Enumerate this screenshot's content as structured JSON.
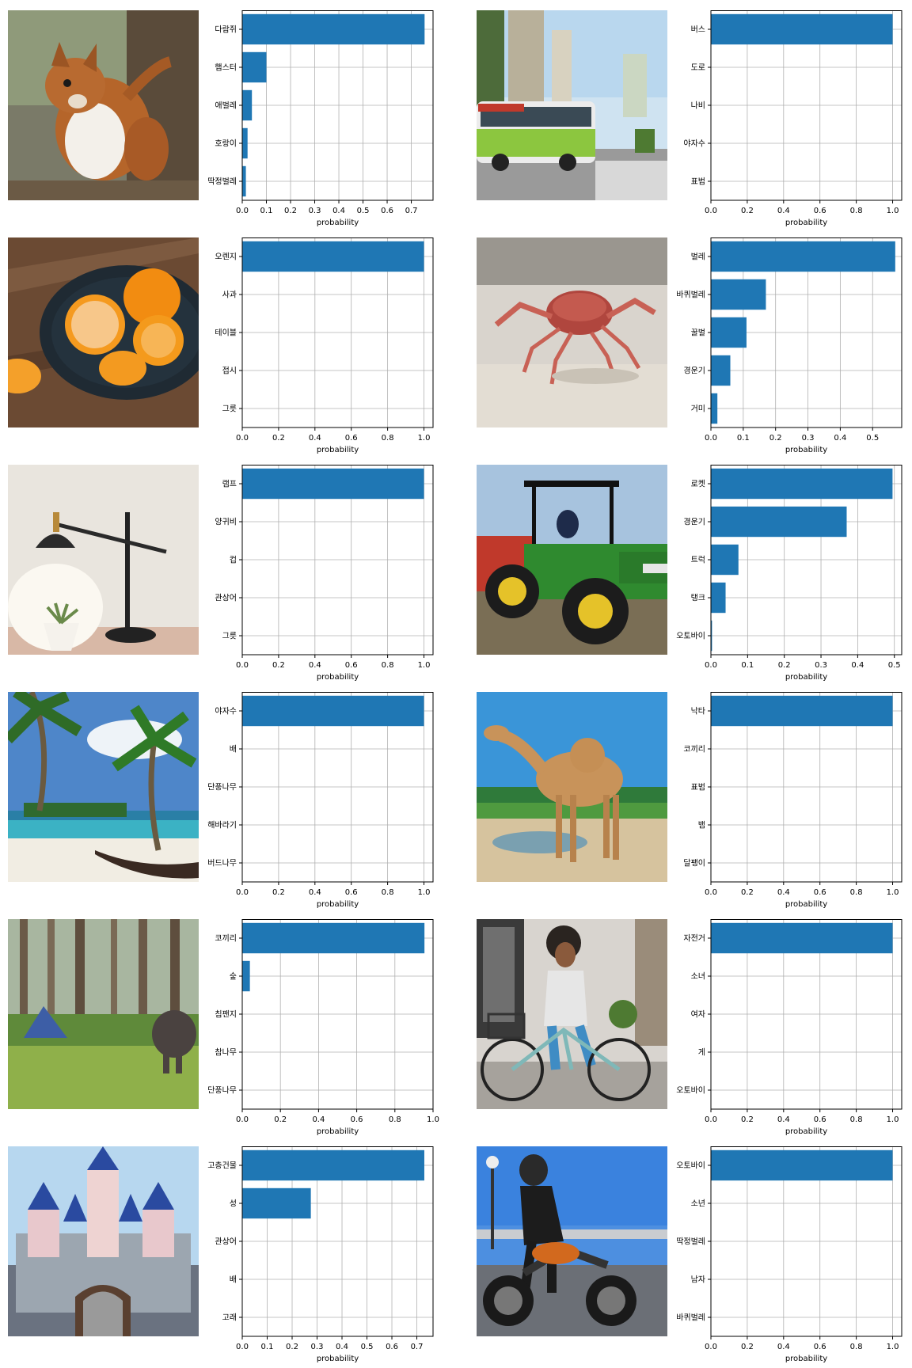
{
  "colors": {
    "bar": "#1f77b4",
    "grid": "#b0b0b0",
    "axis": "#000000"
  },
  "panels": [
    {
      "photo_subject": "squirrel",
      "chart_data": {
        "type": "bar",
        "orientation": "horizontal",
        "xlabel": "probability",
        "xlim": [
          0,
          0.79
        ],
        "xticks": [
          0,
          0.1,
          0.2,
          0.3,
          0.4,
          0.5,
          0.6,
          0.7
        ],
        "grid": true,
        "categories": [
          "다람쥐",
          "햄스터",
          "애벌레",
          "호랑이",
          "딱정벌레"
        ],
        "values": [
          0.755,
          0.1,
          0.04,
          0.022,
          0.015
        ]
      }
    },
    {
      "photo_subject": "bus",
      "chart_data": {
        "type": "bar",
        "orientation": "horizontal",
        "xlabel": "probability",
        "xlim": [
          0,
          1.05
        ],
        "xticks": [
          0,
          0.2,
          0.4,
          0.6,
          0.8,
          1.0
        ],
        "grid": true,
        "categories": [
          "버스",
          "도로",
          "나비",
          "야자수",
          "표범"
        ],
        "values": [
          1.0,
          0.0,
          0.0,
          0.0,
          0.0
        ]
      }
    },
    {
      "photo_subject": "oranges",
      "chart_data": {
        "type": "bar",
        "orientation": "horizontal",
        "xlabel": "probability",
        "xlim": [
          0,
          1.05
        ],
        "xticks": [
          0,
          0.2,
          0.4,
          0.6,
          0.8,
          1.0
        ],
        "grid": true,
        "categories": [
          "오렌지",
          "사과",
          "테이블",
          "접시",
          "그릇"
        ],
        "values": [
          1.0,
          0.0,
          0.0,
          0.0,
          0.0
        ]
      }
    },
    {
      "photo_subject": "crab",
      "chart_data": {
        "type": "bar",
        "orientation": "horizontal",
        "xlabel": "probability",
        "xlim": [
          0,
          0.59
        ],
        "xticks": [
          0,
          0.1,
          0.2,
          0.3,
          0.4,
          0.5
        ],
        "grid": true,
        "categories": [
          "벌레",
          "바퀴벌레",
          "꿀벌",
          "경운기",
          "거미"
        ],
        "values": [
          0.57,
          0.17,
          0.11,
          0.06,
          0.02
        ]
      }
    },
    {
      "photo_subject": "lamp",
      "chart_data": {
        "type": "bar",
        "orientation": "horizontal",
        "xlabel": "probability",
        "xlim": [
          0,
          1.05
        ],
        "xticks": [
          0,
          0.2,
          0.4,
          0.6,
          0.8,
          1.0
        ],
        "grid": true,
        "categories": [
          "램프",
          "양귀비",
          "컵",
          "관상어",
          "그릇"
        ],
        "values": [
          1.0,
          0.0,
          0.0,
          0.0,
          0.0
        ]
      }
    },
    {
      "photo_subject": "tractor",
      "chart_data": {
        "type": "bar",
        "orientation": "horizontal",
        "xlabel": "probability",
        "xlim": [
          0,
          0.52
        ],
        "xticks": [
          0,
          0.1,
          0.2,
          0.3,
          0.4,
          0.5
        ],
        "grid": true,
        "categories": [
          "로켓",
          "경운기",
          "트럭",
          "탱크",
          "오토바이"
        ],
        "values": [
          0.495,
          0.37,
          0.075,
          0.04,
          0.003
        ]
      }
    },
    {
      "photo_subject": "palm beach",
      "chart_data": {
        "type": "bar",
        "orientation": "horizontal",
        "xlabel": "probability",
        "xlim": [
          0,
          1.05
        ],
        "xticks": [
          0,
          0.2,
          0.4,
          0.6,
          0.8,
          1.0
        ],
        "grid": true,
        "categories": [
          "야자수",
          "배",
          "단풍나무",
          "해바라기",
          "버드나무"
        ],
        "values": [
          1.0,
          0.0,
          0.0,
          0.0,
          0.0
        ]
      }
    },
    {
      "photo_subject": "camel",
      "chart_data": {
        "type": "bar",
        "orientation": "horizontal",
        "xlabel": "probability",
        "xlim": [
          0,
          1.05
        ],
        "xticks": [
          0,
          0.2,
          0.4,
          0.6,
          0.8,
          1.0
        ],
        "grid": true,
        "categories": [
          "낙타",
          "코끼리",
          "표범",
          "뱀",
          "달팽이"
        ],
        "values": [
          1.0,
          0.0,
          0.0,
          0.0,
          0.0
        ]
      }
    },
    {
      "photo_subject": "elephant in forest",
      "chart_data": {
        "type": "bar",
        "orientation": "horizontal",
        "xlabel": "probability",
        "xlim": [
          0,
          1.0
        ],
        "xticks": [
          0,
          0.2,
          0.4,
          0.6,
          0.8,
          1.0
        ],
        "grid": true,
        "categories": [
          "코끼리",
          "숲",
          "침팬지",
          "참나무",
          "단풍나무"
        ],
        "values": [
          0.955,
          0.04,
          0.0,
          0.0,
          0.0
        ]
      }
    },
    {
      "photo_subject": "bicycle",
      "chart_data": {
        "type": "bar",
        "orientation": "horizontal",
        "xlabel": "probability",
        "xlim": [
          0,
          1.05
        ],
        "xticks": [
          0,
          0.2,
          0.4,
          0.6,
          0.8,
          1.0
        ],
        "grid": true,
        "categories": [
          "자전거",
          "소녀",
          "여자",
          "게",
          "오토바이"
        ],
        "values": [
          1.0,
          0.0,
          0.0,
          0.0,
          0.0
        ]
      }
    },
    {
      "photo_subject": "castle",
      "chart_data": {
        "type": "bar",
        "orientation": "horizontal",
        "xlabel": "probability",
        "xlim": [
          0,
          0.765
        ],
        "xticks": [
          0,
          0.1,
          0.2,
          0.3,
          0.4,
          0.5,
          0.6,
          0.7
        ],
        "grid": true,
        "categories": [
          "고층건물",
          "성",
          "관상어",
          "배",
          "고래"
        ],
        "values": [
          0.73,
          0.275,
          0.0,
          0.0,
          0.0
        ]
      }
    },
    {
      "photo_subject": "motorcycle",
      "chart_data": {
        "type": "bar",
        "orientation": "horizontal",
        "xlabel": "probability",
        "xlim": [
          0,
          1.05
        ],
        "xticks": [
          0,
          0.2,
          0.4,
          0.6,
          0.8,
          1.0
        ],
        "grid": true,
        "categories": [
          "오토바이",
          "소년",
          "딱정벌레",
          "남자",
          "바퀴벌레"
        ],
        "values": [
          1.0,
          0.0,
          0.0,
          0.0,
          0.0
        ]
      }
    }
  ]
}
